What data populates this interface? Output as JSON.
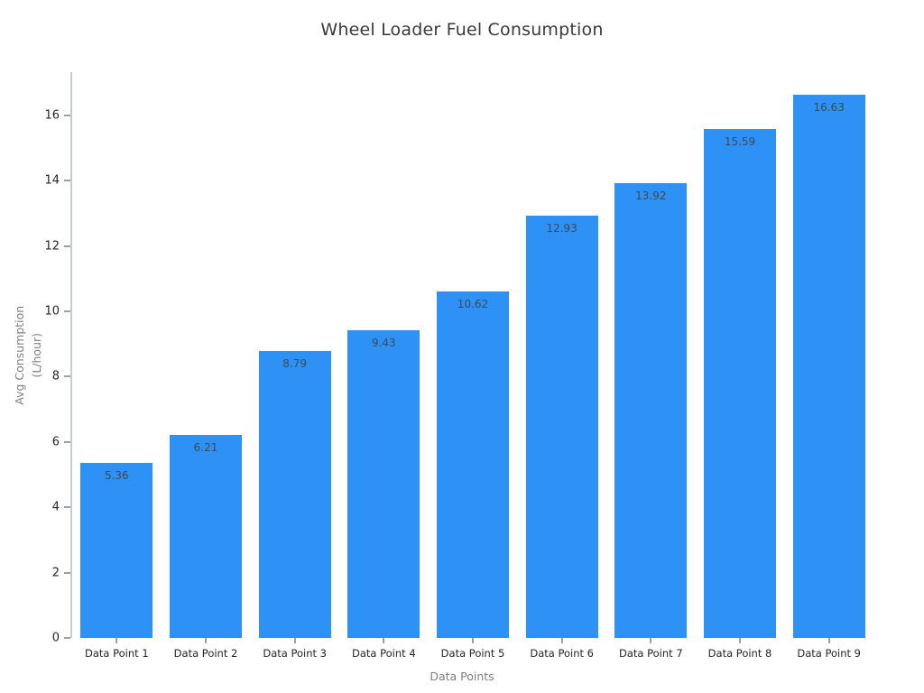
{
  "title": "Wheel Loader Fuel Consumption",
  "chart_data": {
    "type": "bar",
    "title": "Wheel Loader Fuel Consumption",
    "categories": [
      "Data Point 1",
      "Data Point 2",
      "Data Point 3",
      "Data Point 4",
      "Data Point 5",
      "Data Point 6",
      "Data Point 7",
      "Data Point 8",
      "Data Point 9"
    ],
    "values": [
      5.36,
      6.21,
      8.79,
      9.43,
      10.62,
      12.93,
      13.92,
      15.59,
      16.63
    ],
    "value_labels": [
      "5.36",
      "6.21",
      "8.79",
      "9.43",
      "10.62",
      "12.93",
      "13.92",
      "15.59",
      "16.63"
    ],
    "xlabel": "Data Points",
    "ylabel": "Avg Consumption (L/hour)",
    "ylabel_lines": [
      "Avg Consumption",
      "(L/hour)"
    ],
    "yticks": [
      0,
      2,
      4,
      6,
      8,
      10,
      12,
      14,
      16
    ],
    "ylim": [
      0,
      17.32
    ],
    "grid": false,
    "legend": "none"
  },
  "colors": {
    "background": "#ffffff",
    "bar": "#2e91f5",
    "bar_value_label": "#3e4a54",
    "axis_spine": "#c6cad0",
    "tick_mark": "#9aa0a6",
    "tick_label": "#262626",
    "axis_title": "#7f7f7f",
    "chart_title": "#3a3a3a"
  }
}
